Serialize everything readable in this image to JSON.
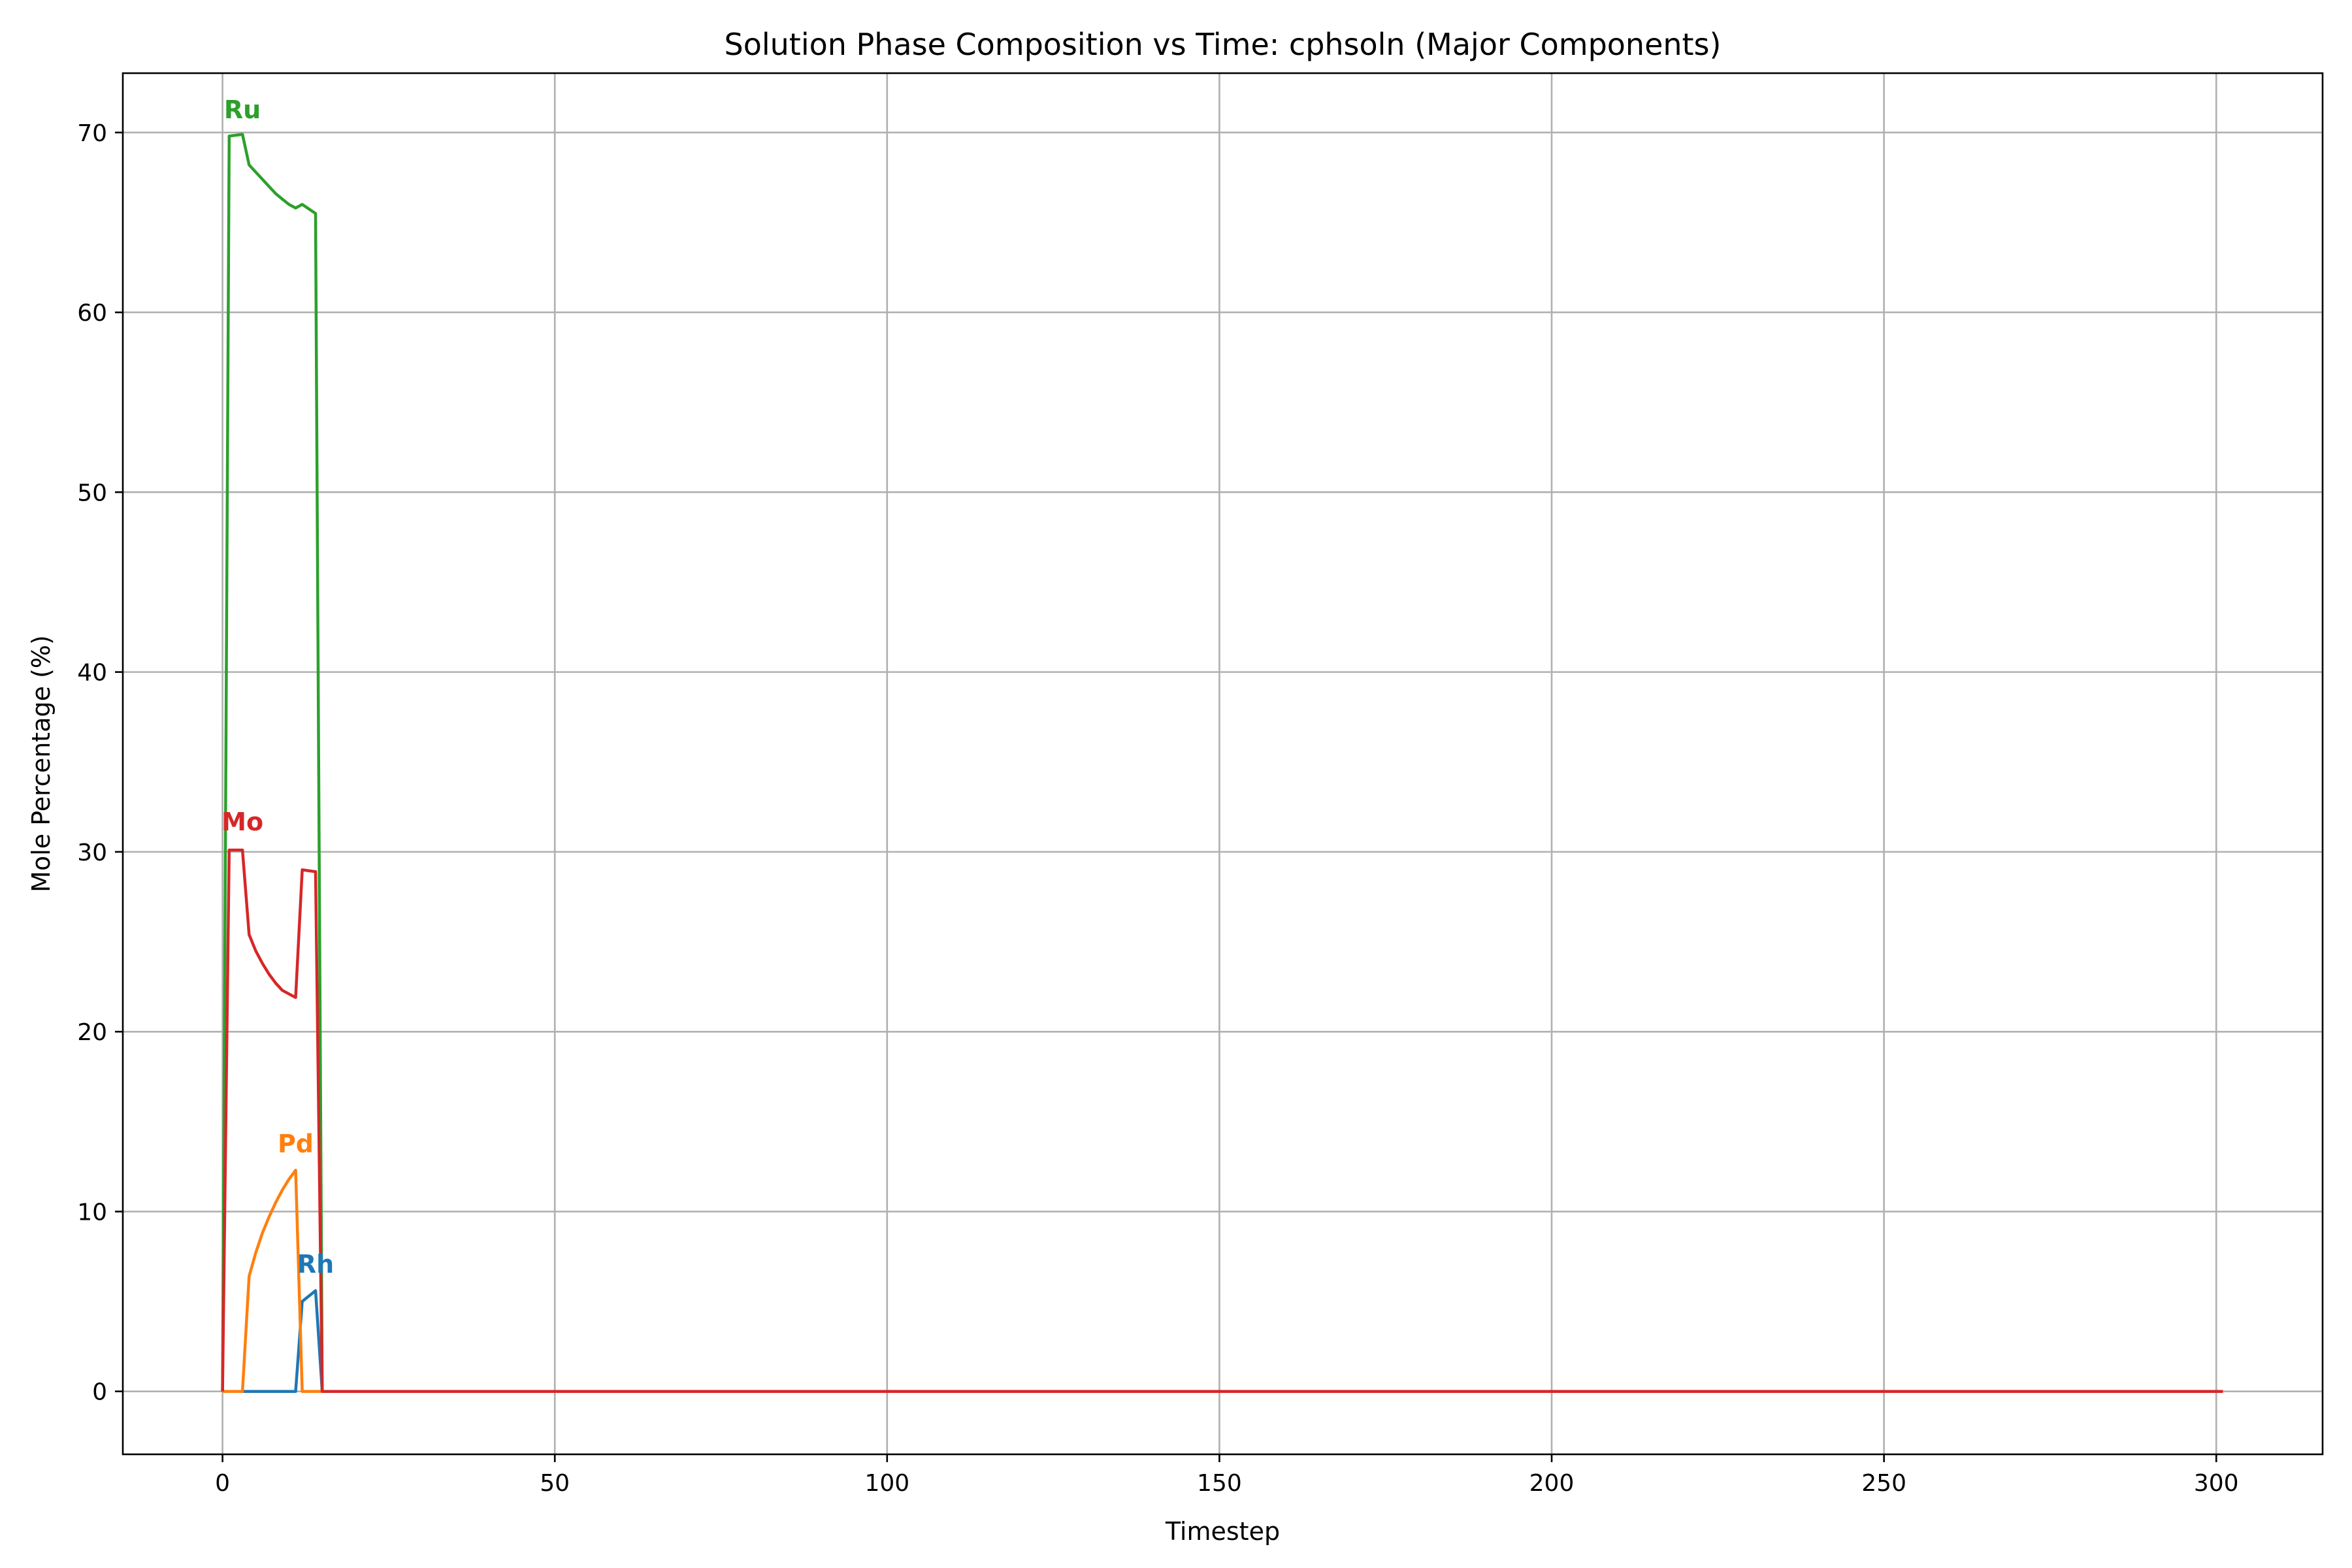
{
  "chart_data": {
    "type": "line",
    "title": "Solution Phase Composition vs Time: cphsoln (Major Components)",
    "xlabel": "Timestep",
    "ylabel": "Mole Percentage (%)",
    "xlim": [
      -15,
      316
    ],
    "ylim": [
      -3.5,
      73.3
    ],
    "xticks": [
      0,
      50,
      100,
      150,
      200,
      250,
      300
    ],
    "yticks": [
      0,
      10,
      20,
      30,
      40,
      50,
      60,
      70
    ],
    "grid": true,
    "legend": "none",
    "series": [
      {
        "name": "Rh",
        "color": "#1f77b4",
        "label_at": [
          14,
          6.6
        ],
        "points": [
          [
            0,
            0
          ],
          [
            11,
            0
          ],
          [
            12,
            5.0
          ],
          [
            14,
            5.6
          ],
          [
            15,
            0
          ],
          [
            301,
            0
          ]
        ]
      },
      {
        "name": "Pd",
        "color": "#ff7f0e",
        "label_at": [
          11,
          13.3
        ],
        "points": [
          [
            0,
            0
          ],
          [
            3,
            0
          ],
          [
            4,
            6.4
          ],
          [
            5,
            7.7
          ],
          [
            6,
            8.8
          ],
          [
            7,
            9.7
          ],
          [
            8,
            10.5
          ],
          [
            9,
            11.2
          ],
          [
            10,
            11.8
          ],
          [
            11,
            12.3
          ],
          [
            12,
            0
          ],
          [
            14,
            0
          ],
          [
            15,
            0
          ],
          [
            301,
            0
          ]
        ]
      },
      {
        "name": "Ru",
        "color": "#2ca02c",
        "label_at": [
          3,
          70.8
        ],
        "points": [
          [
            0,
            0
          ],
          [
            1,
            69.8
          ],
          [
            3,
            69.9
          ],
          [
            4,
            68.2
          ],
          [
            5,
            67.8
          ],
          [
            6,
            67.4
          ],
          [
            7,
            67.0
          ],
          [
            8,
            66.6
          ],
          [
            9,
            66.3
          ],
          [
            10,
            66.0
          ],
          [
            11,
            65.8
          ],
          [
            12,
            66.0
          ],
          [
            14,
            65.5
          ],
          [
            15,
            0
          ],
          [
            301,
            0
          ]
        ]
      },
      {
        "name": "Mo",
        "color": "#d62728",
        "label_at": [
          3,
          31.2
        ],
        "points": [
          [
            0,
            0
          ],
          [
            1,
            30.1
          ],
          [
            3,
            30.1
          ],
          [
            4,
            25.4
          ],
          [
            5,
            24.5
          ],
          [
            6,
            23.8
          ],
          [
            7,
            23.2
          ],
          [
            8,
            22.7
          ],
          [
            9,
            22.3
          ],
          [
            10,
            22.1
          ],
          [
            11,
            21.9
          ],
          [
            12,
            29.0
          ],
          [
            14,
            28.9
          ],
          [
            15,
            0
          ],
          [
            301,
            0
          ]
        ]
      }
    ]
  }
}
